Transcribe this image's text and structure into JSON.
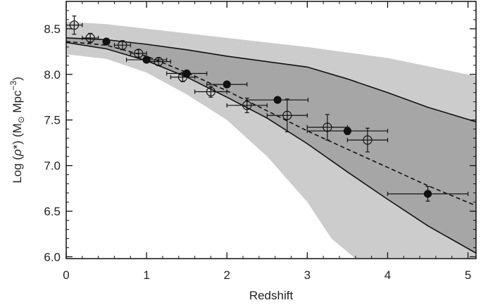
{
  "chart_data": {
    "type": "scatter",
    "title": "",
    "xlabel": "Redshift",
    "ylabel": {
      "prefix": "Log (",
      "rho": "ρ",
      "star": "*",
      "middle": ") (M",
      "sun": "⊙",
      "unit": " Mpc",
      "exponent": "−3",
      "suffix": ")"
    },
    "xlim": [
      0,
      5.1
    ],
    "ylim": [
      5.98,
      8.8
    ],
    "x_ticks": [
      {
        "value": 0,
        "label": "0"
      },
      {
        "value": 1,
        "label": "1"
      },
      {
        "value": 2,
        "label": "2"
      },
      {
        "value": 3,
        "label": "3"
      },
      {
        "value": 4,
        "label": "4"
      },
      {
        "value": 5,
        "label": "5"
      }
    ],
    "y_ticks": [
      {
        "value": 6.0,
        "label": "6.0"
      },
      {
        "value": 6.5,
        "label": "6.5"
      },
      {
        "value": 7.0,
        "label": "7.0"
      },
      {
        "value": 7.5,
        "label": "7.5"
      },
      {
        "value": 8.0,
        "label": "8.0"
      },
      {
        "value": 8.5,
        "label": "8.5"
      }
    ],
    "colors": {
      "outer_band": "#cccccc",
      "inner_band": "#a6a6a6",
      "lines": "#111111",
      "points": "#111111"
    },
    "outer_band": {
      "upper": [
        [
          0,
          8.58
        ],
        [
          0.5,
          8.55
        ],
        [
          1,
          8.5
        ],
        [
          2,
          8.4
        ],
        [
          3,
          8.3
        ],
        [
          4,
          8.18
        ],
        [
          5.1,
          7.98
        ]
      ],
      "lower": [
        [
          0,
          8.22
        ],
        [
          0.5,
          8.17
        ],
        [
          1,
          8.02
        ],
        [
          1.5,
          7.78
        ],
        [
          2,
          7.5
        ],
        [
          2.5,
          7.1
        ],
        [
          3,
          6.6
        ],
        [
          3.3,
          6.2
        ],
        [
          3.6,
          5.98
        ],
        [
          5.1,
          5.98
        ]
      ]
    },
    "inner_band": {
      "upper": [
        [
          0,
          8.4
        ],
        [
          0.5,
          8.38
        ],
        [
          1,
          8.33
        ],
        [
          1.5,
          8.27
        ],
        [
          2,
          8.2
        ],
        [
          2.5,
          8.14
        ],
        [
          3,
          8.08
        ],
        [
          3.5,
          7.95
        ],
        [
          4,
          7.8
        ],
        [
          4.5,
          7.64
        ],
        [
          5.1,
          7.48
        ]
      ],
      "lower": [
        [
          0,
          8.35
        ],
        [
          0.5,
          8.28
        ],
        [
          1,
          8.15
        ],
        [
          1.5,
          7.97
        ],
        [
          2,
          7.75
        ],
        [
          2.5,
          7.52
        ],
        [
          3,
          7.24
        ],
        [
          3.5,
          6.93
        ],
        [
          4,
          6.63
        ],
        [
          4.5,
          6.34
        ],
        [
          5.1,
          6.04
        ]
      ]
    },
    "dashed_line": [
      [
        0,
        8.36
      ],
      [
        0.5,
        8.32
      ],
      [
        1,
        8.2
      ],
      [
        1.5,
        8.02
      ],
      [
        2,
        7.82
      ],
      [
        2.5,
        7.6
      ],
      [
        3,
        7.38
      ],
      [
        3.5,
        7.18
      ],
      [
        4,
        6.98
      ],
      [
        4.5,
        6.78
      ],
      [
        5.1,
        6.56
      ]
    ],
    "series": [
      {
        "marker": "open",
        "points": [
          {
            "x": 0.1,
            "y": 8.54,
            "xerr": 0.1,
            "yerr": 0.1
          },
          {
            "x": 0.3,
            "y": 8.4,
            "xerr": 0.1,
            "yerr": 0.05
          },
          {
            "x": 0.7,
            "y": 8.32,
            "xerr": 0.1,
            "yerr": 0.05
          },
          {
            "x": 0.9,
            "y": 8.23,
            "xerr": 0.1,
            "yerr": 0.04
          },
          {
            "x": 1.15,
            "y": 8.14,
            "xerr": 0.15,
            "yerr": 0.04
          },
          {
            "x": 1.45,
            "y": 7.97,
            "xerr": 0.15,
            "yerr": 0.05
          },
          {
            "x": 1.8,
            "y": 7.81,
            "xerr": 0.2,
            "yerr": 0.06
          },
          {
            "x": 2.25,
            "y": 7.66,
            "xerr": 0.25,
            "yerr": 0.08
          },
          {
            "x": 2.75,
            "y": 7.55,
            "xerr": 0.25,
            "yerr": 0.18
          },
          {
            "x": 3.25,
            "y": 7.42,
            "xerr": 0.25,
            "yerr": 0.14
          },
          {
            "x": 3.75,
            "y": 7.28,
            "xerr": 0.25,
            "yerr": 0.13
          }
        ]
      },
      {
        "marker": "filled",
        "points": [
          {
            "x": 0.5,
            "y": 8.36,
            "xerr": 0.0,
            "yerr": 0.03
          },
          {
            "x": 1.0,
            "y": 8.16,
            "xerr": 0.25,
            "yerr": 0.03
          },
          {
            "x": 1.5,
            "y": 8.01,
            "xerr": 0.25,
            "yerr": 0.03
          },
          {
            "x": 2.0,
            "y": 7.89,
            "xerr": 0.25,
            "yerr": 0.03
          },
          {
            "x": 2.63,
            "y": 7.72,
            "xerr": 0.38,
            "yerr": 0.03
          },
          {
            "x": 3.5,
            "y": 7.38,
            "xerr": 0.5,
            "yerr": 0.04
          },
          {
            "x": 4.5,
            "y": 6.69,
            "xerr": 0.5,
            "yerr": 0.08
          }
        ]
      }
    ]
  }
}
